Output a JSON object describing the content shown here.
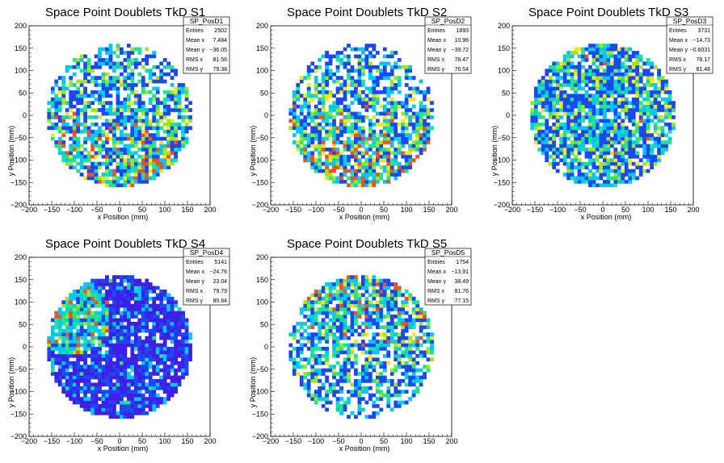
{
  "chart_data": [
    {
      "type": "heatmap",
      "title": "Space Point Doublets TkD S1",
      "xlabel": "x Position (mm)",
      "ylabel": "y Position (mm)",
      "xlim": [
        -200,
        200
      ],
      "ylim": [
        -200,
        200
      ],
      "xticks": [
        "−200",
        "−150",
        "−100",
        "−50",
        "0",
        "50",
        "100",
        "150",
        "200"
      ],
      "yticks": [
        "−200",
        "−150",
        "−100",
        "−50",
        "0",
        "50",
        "100",
        "150",
        "200"
      ],
      "detector_radius": 160,
      "hot_region": "bottom",
      "stats": {
        "name": "SP_PosD1",
        "rows": [
          {
            "label": "Entries",
            "value": "2502"
          },
          {
            "label": "Mean x",
            "value": "7.484"
          },
          {
            "label": "Mean y",
            "value": "−36.05"
          },
          {
            "label": "RMS x",
            "value": "81.56"
          },
          {
            "label": "RMS y",
            "value": "79.38"
          }
        ]
      }
    },
    {
      "type": "heatmap",
      "title": "Space Point Doublets TkD S2",
      "xlabel": "x Position (mm)",
      "ylabel": "y Position (mm)",
      "xlim": [
        -200,
        200
      ],
      "ylim": [
        -200,
        200
      ],
      "xticks": [
        "−200",
        "−150",
        "−100",
        "−50",
        "0",
        "50",
        "100",
        "150",
        "200"
      ],
      "yticks": [
        "−200",
        "−150",
        "−100",
        "−50",
        "0",
        "50",
        "100",
        "150",
        "200"
      ],
      "detector_radius": 160,
      "hot_region": "bottom",
      "stats": {
        "name": "SP_PosD2",
        "rows": [
          {
            "label": "Entries",
            "value": "1893"
          },
          {
            "label": "Mean x",
            "value": "10.96"
          },
          {
            "label": "Mean y",
            "value": "−39.72"
          },
          {
            "label": "RMS x",
            "value": "78.47"
          },
          {
            "label": "RMS y",
            "value": "76.54"
          }
        ]
      }
    },
    {
      "type": "heatmap",
      "title": "Space Point Doublets TkD S3",
      "xlabel": "x Position (mm)",
      "ylabel": "y Position (mm)",
      "xlim": [
        -200,
        200
      ],
      "ylim": [
        -200,
        200
      ],
      "xticks": [
        "−200",
        "−150",
        "−100",
        "−50",
        "0",
        "50",
        "100",
        "150",
        "200"
      ],
      "yticks": [
        "−200",
        "−150",
        "−100",
        "−50",
        "0",
        "50",
        "100",
        "150",
        "200"
      ],
      "detector_radius": 160,
      "hot_region": "uniform",
      "stats": {
        "name": "SP_PosD3",
        "rows": [
          {
            "label": "Entries",
            "value": "3731"
          },
          {
            "label": "Mean x",
            "value": "−14.73"
          },
          {
            "label": "Mean y",
            "value": "−0.6031"
          },
          {
            "label": "RMS x",
            "value": "78.17"
          },
          {
            "label": "RMS y",
            "value": "81.48"
          }
        ]
      }
    },
    {
      "type": "heatmap",
      "title": "Space Point Doublets TkD S4",
      "xlabel": "x Position (mm)",
      "ylabel": "y Position (mm)",
      "xlim": [
        -200,
        200
      ],
      "ylim": [
        -200,
        200
      ],
      "xticks": [
        "−200",
        "−150",
        "−100",
        "−50",
        "0",
        "50",
        "100",
        "150",
        "200"
      ],
      "yticks": [
        "−200",
        "−150",
        "−100",
        "−50",
        "0",
        "50",
        "100",
        "150",
        "200"
      ],
      "detector_radius": 160,
      "hot_region": "top-left",
      "stats": {
        "name": "SP_PosD4",
        "rows": [
          {
            "label": "Entries",
            "value": "5141"
          },
          {
            "label": "Mean x",
            "value": "−24.76"
          },
          {
            "label": "Mean y",
            "value": "23.04"
          },
          {
            "label": "RMS x",
            "value": "79.79"
          },
          {
            "label": "RMS y",
            "value": "80.84"
          }
        ]
      }
    },
    {
      "type": "heatmap",
      "title": "Space Point Doublets TkD S5",
      "xlabel": "x Position (mm)",
      "ylabel": "y Position (mm)",
      "xlim": [
        -200,
        200
      ],
      "ylim": [
        -200,
        200
      ],
      "xticks": [
        "−200",
        "−150",
        "−100",
        "−50",
        "0",
        "50",
        "100",
        "150",
        "200"
      ],
      "yticks": [
        "−200",
        "−150",
        "−100",
        "−50",
        "0",
        "50",
        "100",
        "150",
        "200"
      ],
      "detector_radius": 160,
      "hot_region": "top",
      "stats": {
        "name": "SP_PosD5",
        "rows": [
          {
            "label": "Entries",
            "value": "1754"
          },
          {
            "label": "Mean x",
            "value": "−13.91"
          },
          {
            "label": "Mean y",
            "value": "38.49"
          },
          {
            "label": "RMS x",
            "value": "81.76"
          },
          {
            "label": "RMS y",
            "value": "77.15"
          }
        ]
      }
    }
  ],
  "palette": [
    "#ffffff",
    "#3f1fe6",
    "#1a48f5",
    "#00c8f5",
    "#1ee68c",
    "#9ee61e",
    "#f5e61e",
    "#f5501e"
  ]
}
